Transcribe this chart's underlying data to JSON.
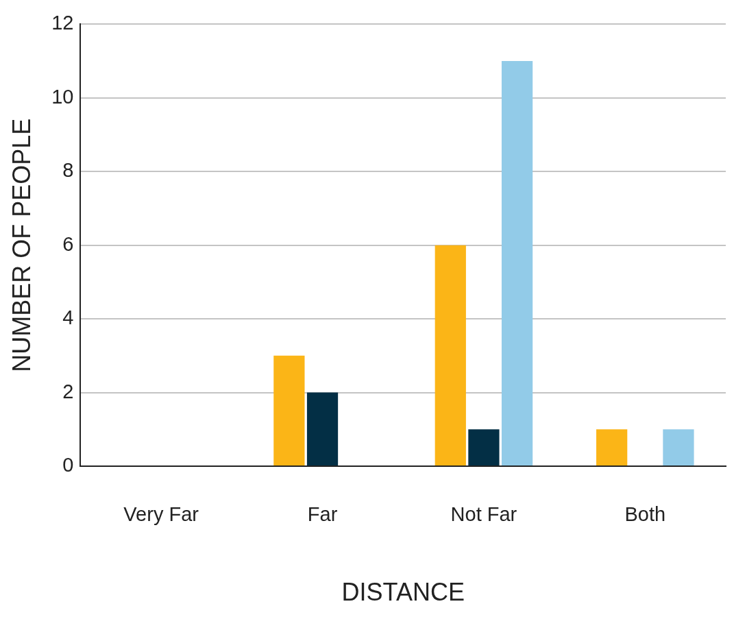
{
  "chart_data": {
    "type": "bar",
    "xlabel": "DISTANCE",
    "ylabel": "NUMBER OF PEOPLE",
    "categories": [
      "Very Far",
      "Far",
      "Not Far",
      "Both"
    ],
    "series": [
      {
        "color": "#fbb517",
        "values": [
          0,
          3,
          6,
          1
        ]
      },
      {
        "color": "#032f45",
        "values": [
          0,
          2,
          1,
          0
        ]
      },
      {
        "color": "#92cbe8",
        "values": [
          0,
          0,
          11,
          1
        ]
      }
    ],
    "ylim": [
      0,
      12
    ],
    "yticks": [
      0,
      2,
      4,
      6,
      8,
      10,
      12
    ],
    "grid": "y",
    "legend": false
  }
}
